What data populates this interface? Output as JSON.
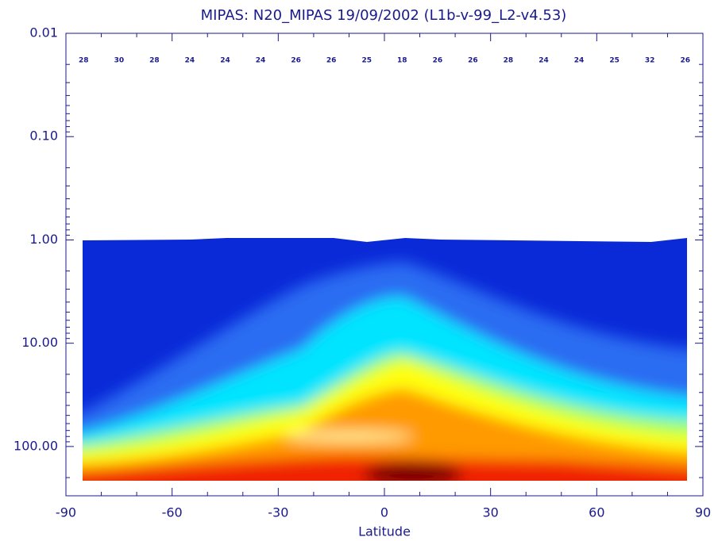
{
  "chart_data": {
    "type": "contour",
    "title": "MIPAS: N20_MIPAS 19/09/2002 (L1b-v-99_L2-v4.53)",
    "x_label": "Latitude",
    "xlim": [
      -90,
      90
    ],
    "xticks": [
      -90,
      -60,
      -30,
      0,
      30,
      60,
      90
    ],
    "ylim": [
      0.01,
      300
    ],
    "y_log": true,
    "y_inverted": true,
    "yticks": [
      0.01,
      {
        "value": 0.1,
        "label": "0.10"
      },
      {
        "value": 1,
        "label": "1.00"
      },
      {
        "value": 10,
        "label": "10.00"
      },
      {
        "value": 100,
        "label": "100.00"
      }
    ],
    "counts": {
      "x": [
        -85,
        -75,
        -65,
        -55,
        -45,
        -35,
        -25,
        -15,
        -5,
        5,
        15,
        25,
        35,
        45,
        55,
        65,
        75,
        85
      ],
      "values": [
        28,
        30,
        28,
        24,
        24,
        24,
        26,
        26,
        25,
        18,
        26,
        26,
        28,
        24,
        24,
        25,
        32,
        26
      ]
    },
    "color": "#1a1a8c"
  }
}
